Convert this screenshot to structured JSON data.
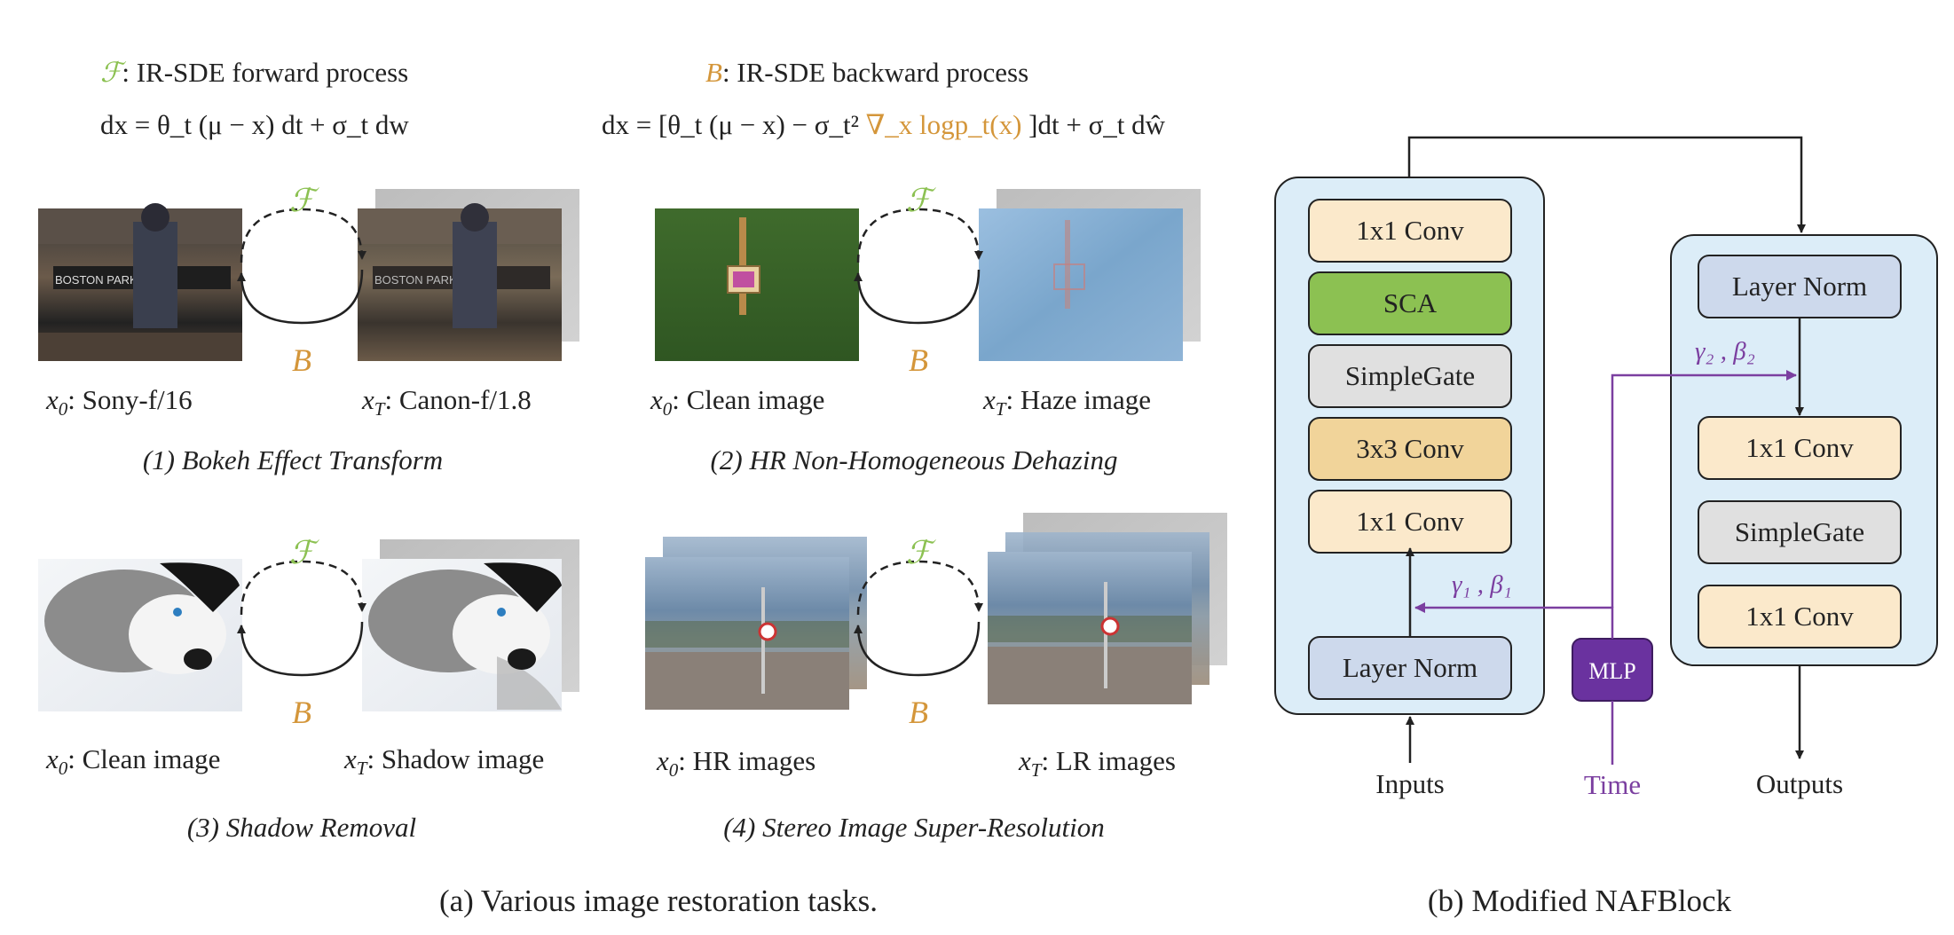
{
  "colors": {
    "forward_green": "#8cc152",
    "backward_orange": "#d4963a",
    "time_purple": "#7b3fa0",
    "mlp_fill": "#6a329f",
    "panel_fill": "#dcedf8",
    "conv_fill": "#fbe9cb",
    "conv3_fill": "#f1d49a",
    "sca_fill": "#8cc152",
    "gate_fill": "#e0e0e0",
    "norm_fill": "#cdd9ec"
  },
  "header": {
    "forward_symbol": "ℱ",
    "forward_label": ": IR-SDE forward process",
    "backward_symbol": "B",
    "backward_label": ": IR-SDE backward process",
    "forward_equation": "dx = θ_t (μ − x) dt + σ_t dw",
    "backward_equation_a": "dx = [θ_t (μ − x)  − σ_t² ",
    "backward_equation_score": "∇_x logp_t(x)",
    "backward_equation_b": " ]dt + σ_t dŵ"
  },
  "tasks": [
    {
      "x0_label": ": Sony-f/16",
      "xT_label": ": Canon-f/1.8",
      "caption": "(1) Bokeh Effect Transform",
      "forward": "ℱ",
      "backward": "B"
    },
    {
      "x0_label": ": Clean image",
      "xT_label": ": Haze image",
      "caption": "(2) HR Non-Homogeneous Dehazing",
      "forward": "ℱ",
      "backward": "B"
    },
    {
      "x0_label": ": Clean image",
      "xT_label": ": Shadow image",
      "caption": "(3) Shadow Removal",
      "forward": "ℱ",
      "backward": "B"
    },
    {
      "x0_label": ": HR images",
      "xT_label": ": LR images",
      "caption": "(4) Stereo Image Super-Resolution",
      "forward": "ℱ",
      "backward": "B"
    }
  ],
  "var_x0": "x₀",
  "var_xT": "x_T",
  "captions": {
    "left": "(a) Various image restoration tasks.",
    "right": "(b) Modified NAFBlock"
  },
  "nafblock": {
    "left_stack": [
      "1x1 Conv",
      "SCA",
      "SimpleGate",
      "3x3 Conv",
      "1x1 Conv"
    ],
    "left_norm": "Layer Norm",
    "right_norm": "Layer Norm",
    "right_stack": [
      "1x1 Conv",
      "SimpleGate",
      "1x1 Conv"
    ],
    "mlp": "MLP",
    "inputs": "Inputs",
    "time": "Time",
    "outputs": "Outputs",
    "gamma1_beta1": "γ₁ , β₁",
    "gamma2_beta2": "γ₂ , β₂"
  }
}
